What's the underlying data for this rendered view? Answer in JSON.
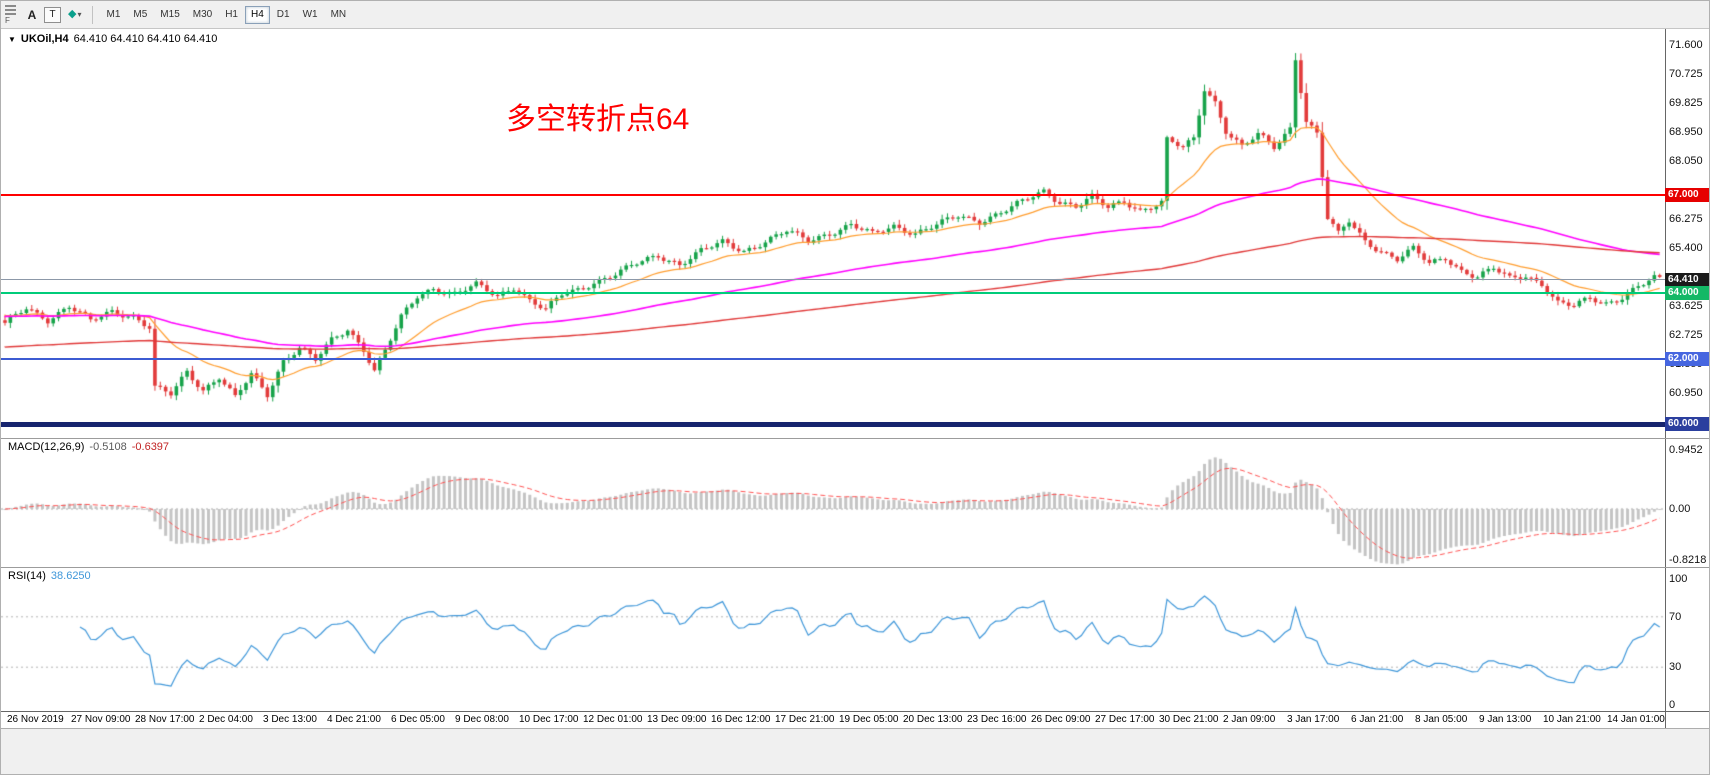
{
  "toolbar": {
    "f_label": "F",
    "a_label": "A",
    "t_label": "T",
    "indicator_glyph": "◆",
    "caret": "▾",
    "timeframes": [
      "M1",
      "M5",
      "M15",
      "M30",
      "H1",
      "H4",
      "D1",
      "W1",
      "MN"
    ],
    "active": "H4"
  },
  "chart_data": {
    "type": "candlestick",
    "symbol": "UKOil",
    "timeframe": "H4",
    "title_marker": "▼",
    "title": "UKOil,H4",
    "ohlc": "64.410 64.410 64.410 64.410",
    "annotation": {
      "text": "多空转折点64",
      "color": "#ff0000"
    },
    "price_axis": {
      "labels": [
        {
          "t": "71.600",
          "p": 71.6
        },
        {
          "t": "70.725",
          "p": 70.725
        },
        {
          "t": "69.825",
          "p": 69.825
        },
        {
          "t": "68.950",
          "p": 68.95
        },
        {
          "t": "68.050",
          "p": 68.05
        },
        {
          "t": "66.275",
          "p": 66.275
        },
        {
          "t": "65.400",
          "p": 65.4
        },
        {
          "t": "63.625",
          "p": 63.625
        },
        {
          "t": "62.725",
          "p": 62.725
        },
        {
          "t": "61.850",
          "p": 61.85
        },
        {
          "t": "60.950",
          "p": 60.95
        }
      ]
    },
    "hlines": [
      {
        "price": 67.0,
        "color": "#ff0000",
        "width": 2,
        "badge": "67.000",
        "badge_bg": "#e60000",
        "badge_fg": "#ffffff"
      },
      {
        "price": 64.41,
        "color": "#8c98a8",
        "width": 1,
        "badge": "64.410",
        "badge_bg": "#1b1b1b",
        "badge_fg": "#ffffff"
      },
      {
        "price": 64.0,
        "color": "#00cc7a",
        "width": 2,
        "badge": "64.000",
        "badge_bg": "#14b866",
        "badge_fg": "#ffffff"
      },
      {
        "price": 62.0,
        "color": "#3c5bd2",
        "width": 2,
        "badge": "62.000",
        "badge_bg": "#4666e0",
        "badge_fg": "#ffffff"
      },
      {
        "price": 60.0,
        "color": "#16246e",
        "width": 5,
        "badge": "60.000",
        "badge_bg": "#2b3f9e",
        "badge_fg": "#ffffff"
      }
    ],
    "candles": {
      "count": 310,
      "up_color": "#17a34a",
      "down_color": "#e23b3b",
      "anchors": [
        [
          0,
          63.05
        ],
        [
          4,
          63.55
        ],
        [
          8,
          63.2
        ],
        [
          12,
          63.6
        ],
        [
          16,
          63.15
        ],
        [
          20,
          63.45
        ],
        [
          24,
          63.3
        ],
        [
          27,
          62.95
        ],
        [
          28,
          61.1
        ],
        [
          31,
          60.9
        ],
        [
          34,
          61.6
        ],
        [
          37,
          61.05
        ],
        [
          40,
          61.45
        ],
        [
          43,
          60.8
        ],
        [
          46,
          61.5
        ],
        [
          49,
          60.9
        ],
        [
          52,
          61.95
        ],
        [
          55,
          62.35
        ],
        [
          58,
          61.95
        ],
        [
          61,
          62.55
        ],
        [
          64,
          62.9
        ],
        [
          67,
          62.3
        ],
        [
          69,
          61.65
        ],
        [
          71,
          62.25
        ],
        [
          74,
          63.25
        ],
        [
          77,
          63.9
        ],
        [
          80,
          64.15
        ],
        [
          84,
          64.0
        ],
        [
          88,
          64.25
        ],
        [
          92,
          63.9
        ],
        [
          95,
          64.2
        ],
        [
          98,
          63.8
        ],
        [
          101,
          63.5
        ],
        [
          104,
          63.95
        ],
        [
          107,
          64.1
        ],
        [
          110,
          64.35
        ],
        [
          114,
          64.6
        ],
        [
          118,
          64.9
        ],
        [
          122,
          65.15
        ],
        [
          126,
          64.9
        ],
        [
          130,
          65.3
        ],
        [
          134,
          65.55
        ],
        [
          138,
          65.3
        ],
        [
          142,
          65.6
        ],
        [
          146,
          65.9
        ],
        [
          150,
          65.6
        ],
        [
          154,
          65.85
        ],
        [
          158,
          66.1
        ],
        [
          162,
          65.8
        ],
        [
          166,
          66.05
        ],
        [
          170,
          65.85
        ],
        [
          174,
          66.1
        ],
        [
          178,
          66.35
        ],
        [
          182,
          66.2
        ],
        [
          186,
          66.5
        ],
        [
          190,
          66.8
        ],
        [
          194,
          67.1
        ],
        [
          197,
          66.8
        ],
        [
          200,
          66.7
        ],
        [
          203,
          66.95
        ],
        [
          206,
          66.6
        ],
        [
          209,
          66.8
        ],
        [
          212,
          66.55
        ],
        [
          216,
          66.8
        ],
        [
          217,
          68.7
        ],
        [
          220,
          68.45
        ],
        [
          222,
          68.7
        ],
        [
          224,
          70.25
        ],
        [
          226,
          69.85
        ],
        [
          228,
          69.0
        ],
        [
          231,
          68.5
        ],
        [
          234,
          68.85
        ],
        [
          237,
          68.45
        ],
        [
          240,
          69.05
        ],
        [
          241,
          71.2
        ],
        [
          243,
          69.3
        ],
        [
          245,
          68.9
        ],
        [
          247,
          66.3
        ],
        [
          249,
          65.8
        ],
        [
          251,
          66.2
        ],
        [
          254,
          65.6
        ],
        [
          257,
          65.3
        ],
        [
          260,
          65.05
        ],
        [
          263,
          65.35
        ],
        [
          266,
          64.9
        ],
        [
          269,
          65.1
        ],
        [
          272,
          64.7
        ],
        [
          275,
          64.5
        ],
        [
          278,
          64.75
        ],
        [
          281,
          64.45
        ],
        [
          284,
          64.55
        ],
        [
          287,
          64.3
        ],
        [
          290,
          63.7
        ],
        [
          293,
          63.6
        ],
        [
          296,
          63.85
        ],
        [
          299,
          63.7
        ],
        [
          302,
          63.9
        ],
        [
          305,
          64.2
        ],
        [
          308,
          64.45
        ],
        [
          309,
          64.41
        ]
      ]
    },
    "moving_averages": [
      {
        "name": "ma-fast",
        "color": "#ff9d2e",
        "alpha": 0.1,
        "init": 63.35,
        "width": 1.2
      },
      {
        "name": "ma-mid",
        "color": "#ff00ff",
        "alpha": 0.022,
        "init": 63.3,
        "width": 1.6
      },
      {
        "name": "ma-slow",
        "color": "#e03838",
        "alpha": 0.0085,
        "init": 62.35,
        "width": 1.4
      }
    ],
    "macd": {
      "label": "MACD(12,26,9)",
      "macd_value": "-0.5108",
      "signal_value": "-0.6397",
      "axis": [
        {
          "t": "0.9452",
          "v": 0.9452
        },
        {
          "t": "0.00",
          "v": 0
        },
        {
          "t": "-0.8218",
          "v": -0.8218
        }
      ],
      "bar_color": "#c4c4c4",
      "signal_color": "#ff5050"
    },
    "rsi": {
      "label": "RSI(14)",
      "value": "38.6250",
      "axis": [
        {
          "t": "100",
          "v": 100
        },
        {
          "t": "70",
          "v": 70
        },
        {
          "t": "30",
          "v": 30
        },
        {
          "t": "0",
          "v": 0
        }
      ],
      "levels": [
        70,
        30
      ],
      "line_color": "#3f97d9"
    },
    "time_axis": {
      "labels": [
        "26 Nov 2019",
        "27 Nov 09:00",
        "28 Nov 17:00",
        "2 Dec 04:00",
        "3 Dec 13:00",
        "4 Dec 21:00",
        "6 Dec 05:00",
        "9 Dec 08:00",
        "10 Dec 17:00",
        "12 Dec 01:00",
        "13 Dec 09:00",
        "16 Dec 12:00",
        "17 Dec 21:00",
        "19 Dec 05:00",
        "20 Dec 13:00",
        "23 Dec 16:00",
        "26 Dec 09:00",
        "27 Dec 17:00",
        "30 Dec 21:00",
        "2 Jan 09:00",
        "3 Jan 17:00",
        "6 Jan 21:00",
        "8 Jan 05:00",
        "9 Jan 13:00",
        "10 Jan 21:00",
        "14 Jan 01:00"
      ]
    }
  }
}
